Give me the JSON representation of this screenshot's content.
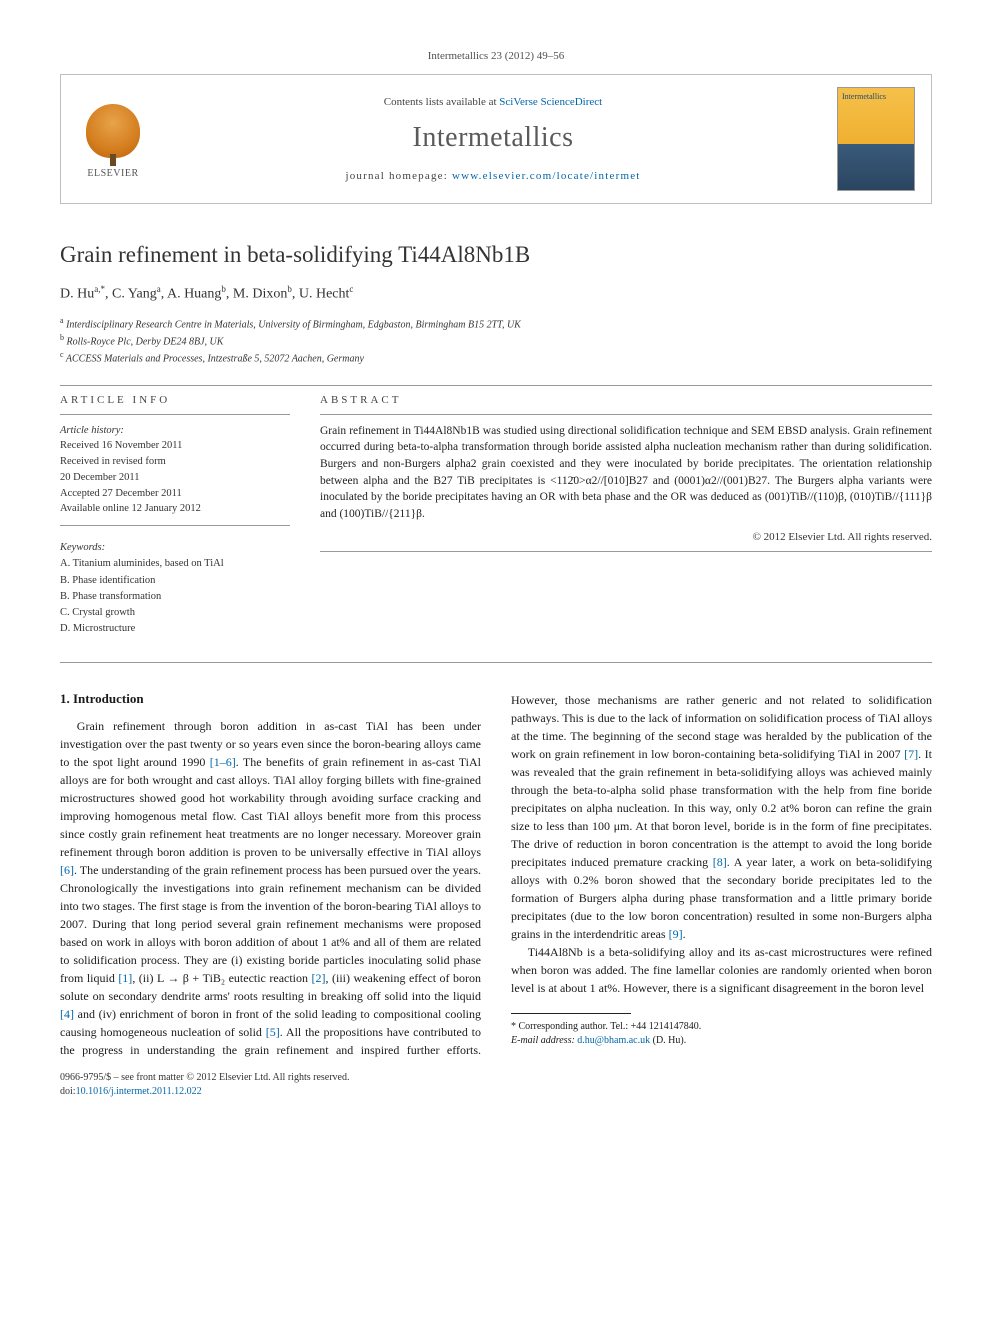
{
  "journal_ref": "Intermetallics 23 (2012) 49–56",
  "header": {
    "publisher_logo_text": "ELSEVIER",
    "contents_prefix": "Contents lists available at ",
    "contents_link": "SciVerse ScienceDirect",
    "journal_name": "Intermetallics",
    "homepage_prefix": "journal homepage: ",
    "homepage_url": "www.elsevier.com/locate/intermet",
    "cover_label": "Intermetallics"
  },
  "title": "Grain refinement in beta-solidifying Ti44Al8Nb1B",
  "authors_html": "D. Hu<sup>a,*</sup>, C. Yang<sup>a</sup>, A. Huang<sup>b</sup>, M. Dixon<sup>b</sup>, U. Hecht<sup>c</sup>",
  "affiliations": [
    "a Interdisciplinary Research Centre in Materials, University of Birmingham, Edgbaston, Birmingham B15 2TT, UK",
    "b Rolls-Royce Plc, Derby DE24 8BJ, UK",
    "c ACCESS Materials and Processes, Intzestraße 5, 52072 Aachen, Germany"
  ],
  "info": {
    "label": "ARTICLE INFO",
    "history_label": "Article history:",
    "history": [
      "Received 16 November 2011",
      "Received in revised form",
      "20 December 2011",
      "Accepted 27 December 2011",
      "Available online 12 January 2012"
    ],
    "keywords_label": "Keywords:",
    "keywords": [
      "A. Titanium aluminides, based on TiAl",
      "B. Phase identification",
      "B. Phase transformation",
      "C. Crystal growth",
      "D. Microstructure"
    ]
  },
  "abstract": {
    "label": "ABSTRACT",
    "text": "Grain refinement in Ti44Al8Nb1B was studied using directional solidification technique and SEM EBSD analysis. Grain refinement occurred during beta-to-alpha transformation through boride assisted alpha nucleation mechanism rather than during solidification. Burgers and non-Burgers alpha2 grain coexisted and they were inoculated by boride precipitates. The orientation relationship between alpha and the B27 TiB precipitates is <112̄0>α2//[010]B27 and (0001)α2//(001)B27. The Burgers alpha variants were inoculated by the boride precipitates having an OR with beta phase and the OR was deduced as (001)TiB//(110)β, (010)TiB//{111}β and (100)TiB//{211}β.",
    "copyright": "© 2012 Elsevier Ltd. All rights reserved."
  },
  "body": {
    "heading": "1. Introduction",
    "paragraph1_pre": "Grain refinement through boron addition in as-cast TiAl has been under investigation over the past twenty or so years even since the boron-bearing alloys came to the spot light around 1990 ",
    "ref_1_6": "[1–6]",
    "paragraph1_mid1": ". The benefits of grain refinement in as-cast TiAl alloys are for both wrought and cast alloys. TiAl alloy forging billets with fine-grained microstructures showed good hot workability through avoiding surface cracking and improving homogenous metal flow. Cast TiAl alloys benefit more from this process since costly grain refinement heat treatments are no longer necessary. Moreover grain refinement through boron addition is proven to be universally effective in TiAl alloys ",
    "ref_6": "[6]",
    "paragraph1_mid2": ". The understanding of the grain refinement process has been pursued over the years. Chronologically the investigations into grain refinement mechanism can be divided into two stages. The first stage is from the invention of the boron-bearing TiAl alloys to 2007. During that long period several grain refinement mechanisms were proposed based on work in alloys with boron addition of about 1 at% and all of them are related to solidification process. They are (i) existing boride particles inoculating solid phase from liquid ",
    "ref_1": "[1]",
    "paragraph1_mid3": ", (ii) L → β + TiB₂ eutectic reaction ",
    "ref_2": "[2]",
    "paragraph1_mid4": ", (iii) weakening effect of boron solute on secondary dendrite arms' roots resulting in breaking off solid into the liquid ",
    "ref_4": "[4]",
    "paragraph1_mid5": " and (iv) enrichment of boron in front of the solid leading to compositional cooling causing homogeneous nucleation of solid ",
    "ref_5": "[5]",
    "paragraph1_mid6": ". All the propositions have contributed to the progress in understanding the grain refinement and inspired further efforts. However, those mechanisms are rather generic and not related to solidification pathways. This is due to the lack of information on solidification process of TiAl alloys at the time. The beginning of the second stage was heralded by the publication of the work on grain refinement in low boron-containing beta-solidifying TiAl in 2007 ",
    "ref_7": "[7]",
    "paragraph1_mid7": ". It was revealed that the grain refinement in beta-solidifying alloys was achieved mainly through the beta-to-alpha solid phase transformation with the help from fine boride precipitates on alpha nucleation. In this way, only 0.2 at% boron can refine the grain size to less than 100 μm. At that boron level, boride is in the form of fine precipitates. The drive of reduction in boron concentration is the attempt to avoid the long boride precipitates induced premature cracking ",
    "ref_8": "[8]",
    "paragraph1_mid8": ". A year later, a work on beta-solidifying alloys with 0.2% boron showed that the secondary boride precipitates led to the formation of Burgers alpha during phase transformation and a little primary boride precipitates (due to the low boron concentration) resulted in some non-Burgers alpha grains in the interdendritic areas ",
    "ref_9": "[9]",
    "paragraph1_end": ".",
    "paragraph2": "Ti44Al8Nb is a beta-solidifying alloy and its as-cast microstructures were refined when boron was added. The fine lamellar colonies are randomly oriented when boron level is at about 1 at%. However, there is a significant disagreement in the boron level"
  },
  "footnote": {
    "corr_label": "* Corresponding author. Tel.: +44 1214147840.",
    "email_label": "E-mail address: ",
    "email": "d.hu@bham.ac.uk",
    "email_suffix": " (D. Hu)."
  },
  "footer": {
    "issn_line": "0966-9795/$ – see front matter © 2012 Elsevier Ltd. All rights reserved.",
    "doi_prefix": "doi:",
    "doi": "10.1016/j.intermet.2011.12.022"
  }
}
